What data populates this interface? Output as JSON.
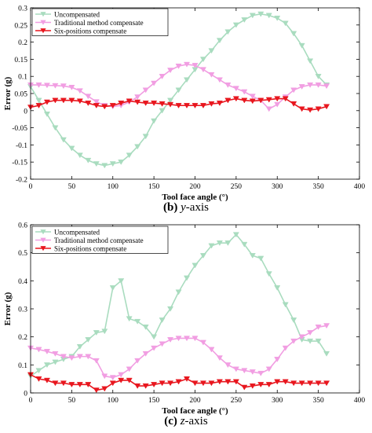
{
  "chart_data": [
    {
      "type": "line",
      "panel_label": "(b)",
      "caption_suffix": "y",
      "caption_rest": "-axis",
      "xlabel": "Tool face angle (°)",
      "ylabel": "Error (g)",
      "xlim": [
        0,
        400
      ],
      "ylim": [
        -0.2,
        0.3
      ],
      "xticks": [
        0,
        50,
        100,
        150,
        200,
        250,
        300,
        350,
        400
      ],
      "yticks": [
        -0.2,
        -0.15,
        -0.1,
        -0.05,
        0,
        0.05,
        0.1,
        0.15,
        0.2,
        0.25,
        0.3
      ],
      "ytick_labels": [
        "-0.2",
        "-0.15",
        "-0.1",
        "-0.05",
        "0",
        "0.05",
        "0.1",
        "0.15",
        "0.2",
        "0.25",
        "0.3"
      ],
      "grid": false,
      "legend_position": "top-left",
      "x": [
        0,
        10,
        20,
        30,
        40,
        50,
        60,
        70,
        80,
        90,
        100,
        110,
        120,
        130,
        140,
        150,
        160,
        170,
        180,
        190,
        200,
        210,
        220,
        230,
        240,
        250,
        260,
        270,
        280,
        290,
        300,
        310,
        320,
        330,
        340,
        350,
        360
      ],
      "series": [
        {
          "name": "Uncompensated",
          "color": "#a9dcbf",
          "marker": "triangle-down",
          "values": [
            0.07,
            0.03,
            -0.01,
            -0.05,
            -0.085,
            -0.11,
            -0.13,
            -0.145,
            -0.155,
            -0.16,
            -0.155,
            -0.15,
            -0.13,
            -0.105,
            -0.075,
            -0.03,
            0.0,
            0.03,
            0.06,
            0.09,
            0.12,
            0.15,
            0.175,
            0.205,
            0.23,
            0.25,
            0.265,
            0.278,
            0.282,
            0.278,
            0.27,
            0.255,
            0.225,
            0.19,
            0.145,
            0.1,
            0.075
          ]
        },
        {
          "name": "Traditional method compensate",
          "color": "#f19ee2",
          "marker": "triangle-down",
          "values": [
            0.075,
            0.075,
            0.074,
            0.073,
            0.072,
            0.068,
            0.058,
            0.042,
            0.026,
            0.015,
            0.012,
            0.015,
            0.025,
            0.04,
            0.06,
            0.08,
            0.1,
            0.118,
            0.13,
            0.135,
            0.132,
            0.12,
            0.105,
            0.09,
            0.075,
            0.065,
            0.055,
            0.042,
            0.03,
            0.005,
            0.018,
            0.04,
            0.06,
            0.07,
            0.075,
            0.075,
            0.072
          ]
        },
        {
          "name": "Six-positions compensate",
          "color": "#e8161e",
          "marker": "triangle-down",
          "values": [
            0.01,
            0.015,
            0.025,
            0.03,
            0.03,
            0.03,
            0.028,
            0.022,
            0.015,
            0.012,
            0.015,
            0.022,
            0.028,
            0.025,
            0.022,
            0.022,
            0.02,
            0.018,
            0.015,
            0.015,
            0.015,
            0.015,
            0.02,
            0.022,
            0.03,
            0.035,
            0.03,
            0.028,
            0.03,
            0.032,
            0.035,
            0.035,
            0.02,
            0.005,
            0.002,
            0.005,
            0.012
          ]
        }
      ]
    },
    {
      "type": "line",
      "panel_label": "(c)",
      "caption_suffix": "z",
      "caption_rest": "-axis",
      "xlabel": "Tool face angle (°)",
      "ylabel": "Error (g)",
      "xlim": [
        0,
        400
      ],
      "ylim": [
        0,
        0.6
      ],
      "xticks": [
        0,
        50,
        100,
        150,
        200,
        250,
        300,
        350,
        400
      ],
      "yticks": [
        0,
        0.1,
        0.2,
        0.3,
        0.4,
        0.5,
        0.6
      ],
      "ytick_labels": [
        "0",
        "0.1",
        "0.2",
        "0.3",
        "0.4",
        "0.5",
        "0.6"
      ],
      "grid": false,
      "legend_position": "top-left",
      "x": [
        0,
        10,
        20,
        30,
        40,
        50,
        60,
        70,
        80,
        90,
        100,
        110,
        120,
        130,
        140,
        150,
        160,
        170,
        180,
        190,
        200,
        210,
        220,
        230,
        240,
        250,
        260,
        270,
        280,
        290,
        300,
        310,
        320,
        330,
        340,
        350,
        360
      ],
      "series": [
        {
          "name": "Uncompensated",
          "color": "#a9dcbf",
          "marker": "triangle-down",
          "values": [
            0.06,
            0.08,
            0.1,
            0.11,
            0.12,
            0.13,
            0.165,
            0.19,
            0.215,
            0.22,
            0.375,
            0.4,
            0.265,
            0.255,
            0.235,
            0.2,
            0.26,
            0.3,
            0.36,
            0.41,
            0.455,
            0.49,
            0.525,
            0.535,
            0.535,
            0.565,
            0.53,
            0.49,
            0.48,
            0.425,
            0.375,
            0.315,
            0.26,
            0.19,
            0.185,
            0.185,
            0.14
          ]
        },
        {
          "name": "Traditional method compensate",
          "color": "#f19ee2",
          "marker": "triangle-down",
          "values": [
            0.16,
            0.155,
            0.148,
            0.14,
            0.13,
            0.125,
            0.13,
            0.13,
            0.115,
            0.06,
            0.055,
            0.065,
            0.085,
            0.115,
            0.14,
            0.16,
            0.175,
            0.19,
            0.195,
            0.195,
            0.195,
            0.18,
            0.155,
            0.125,
            0.1,
            0.085,
            0.08,
            0.075,
            0.07,
            0.085,
            0.12,
            0.16,
            0.185,
            0.2,
            0.215,
            0.235,
            0.24
          ]
        },
        {
          "name": "Six-positions compensate",
          "color": "#e8161e",
          "marker": "triangle-down",
          "values": [
            0.065,
            0.05,
            0.045,
            0.035,
            0.035,
            0.03,
            0.03,
            0.03,
            0.01,
            0.015,
            0.035,
            0.045,
            0.045,
            0.025,
            0.025,
            0.03,
            0.035,
            0.035,
            0.04,
            0.05,
            0.035,
            0.035,
            0.035,
            0.04,
            0.04,
            0.04,
            0.02,
            0.025,
            0.03,
            0.03,
            0.04,
            0.04,
            0.035,
            0.035,
            0.035,
            0.035,
            0.035
          ]
        }
      ]
    }
  ]
}
